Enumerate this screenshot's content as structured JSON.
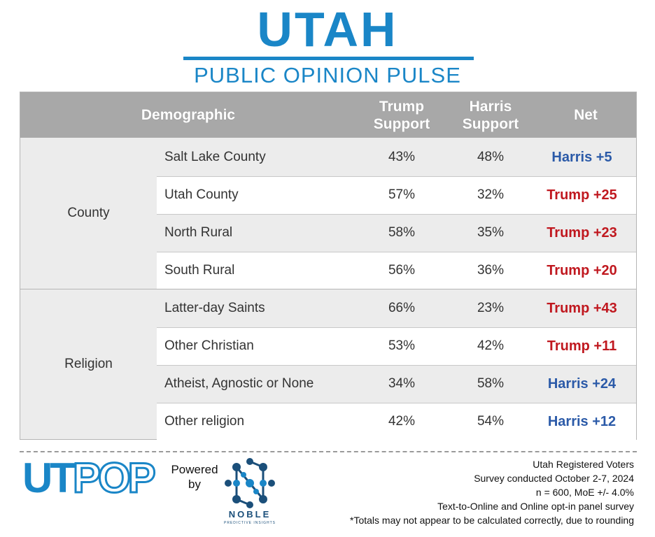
{
  "header": {
    "title": "UTAH",
    "subtitle": "PUBLIC OPINION PULSE"
  },
  "table": {
    "columns": {
      "demographic": "Demographic",
      "trump": "Trump Support",
      "harris": "Harris Support",
      "net": "Net"
    },
    "groups": [
      {
        "label": "County",
        "rows": [
          {
            "name": "Salt Lake County",
            "trump": "43%",
            "harris": "48%",
            "net": "Harris +5",
            "leader": "harris"
          },
          {
            "name": "Utah County",
            "trump": "57%",
            "harris": "32%",
            "net": "Trump +25",
            "leader": "trump"
          },
          {
            "name": "North Rural",
            "trump": "58%",
            "harris": "35%",
            "net": "Trump +23",
            "leader": "trump"
          },
          {
            "name": "South Rural",
            "trump": "56%",
            "harris": "36%",
            "net": "Trump +20",
            "leader": "trump"
          }
        ]
      },
      {
        "label": "Religion",
        "rows": [
          {
            "name": "Latter-day Saints",
            "trump": "66%",
            "harris": "23%",
            "net": "Trump +43",
            "leader": "trump"
          },
          {
            "name": "Other Christian",
            "trump": "53%",
            "harris": "42%",
            "net": "Trump +11",
            "leader": "trump"
          },
          {
            "name": "Atheist, Agnostic or None",
            "trump": "34%",
            "harris": "58%",
            "net": "Harris +24",
            "leader": "harris"
          },
          {
            "name": "Other religion",
            "trump": "42%",
            "harris": "54%",
            "net": "Harris +12",
            "leader": "harris"
          }
        ]
      }
    ]
  },
  "colors": {
    "brand": "#1a86c7",
    "trump": "#c0181f",
    "harris": "#2b5aa8",
    "header_bg": "#a8a8a8"
  },
  "footer": {
    "logo_ut": "UT",
    "logo_pop": "POP",
    "powered_by": "Powered by",
    "partner_name": "NOBLE",
    "partner_tagline": "PREDICTIVE INSIGHTS",
    "notes": [
      "Utah Registered Voters",
      "Survey conducted October 2-7, 2024",
      "n = 600, MoE +/- 4.0%",
      "Text-to-Online and Online opt-in panel survey",
      "*Totals may not appear to be calculated correctly, due to rounding"
    ]
  }
}
